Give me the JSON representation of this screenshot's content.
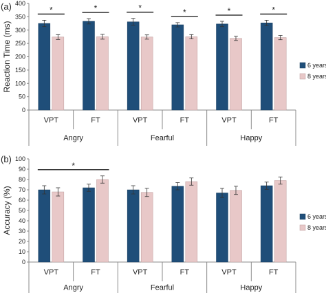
{
  "chart_data": [
    {
      "type": "bar",
      "panel_label": "(a)",
      "ylabel": "Reaction Time (ms)",
      "ylim": [
        0,
        400
      ],
      "yticks": [
        0,
        50,
        100,
        150,
        200,
        250,
        300,
        350,
        400
      ],
      "conditions": [
        "VPT",
        "FT",
        "VPT",
        "FT",
        "VPT",
        "FT"
      ],
      "emotions": [
        "Angry",
        "Fearful",
        "Happy"
      ],
      "series": [
        {
          "name": "6 years",
          "color": "#1f4e79",
          "values": [
            325,
            333,
            331,
            320,
            323,
            327
          ],
          "errors": [
            12,
            10,
            13,
            8,
            10,
            10
          ]
        },
        {
          "name": "8 years",
          "color": "#e8c8c8",
          "values": [
            274,
            275,
            274,
            275,
            269,
            272
          ],
          "errors": [
            9,
            9,
            8,
            8,
            8,
            8
          ]
        }
      ],
      "significance": [
        {
          "label": "*",
          "from": 0,
          "to": 0
        },
        {
          "label": "*",
          "from": 1,
          "to": 1
        },
        {
          "label": "*",
          "from": 2,
          "to": 2
        },
        {
          "label": "*",
          "from": 3,
          "to": 3
        },
        {
          "label": "*",
          "from": 4,
          "to": 4
        },
        {
          "label": "*",
          "from": 5,
          "to": 5
        }
      ],
      "legend_position": "right"
    },
    {
      "type": "bar",
      "panel_label": "(b)",
      "ylabel": "Accuracy (%)",
      "ylim": [
        0,
        100
      ],
      "yticks": [
        0,
        10,
        20,
        30,
        40,
        50,
        60,
        70,
        80,
        90,
        100
      ],
      "conditions": [
        "VPT",
        "FT",
        "VPT",
        "FT",
        "VPT",
        "FT"
      ],
      "emotions": [
        "Angry",
        "Fearful",
        "Happy"
      ],
      "series": [
        {
          "name": "6 years",
          "color": "#1f4e79",
          "values": [
            70,
            72,
            70,
            73.5,
            67,
            74
          ],
          "errors": [
            4,
            3.5,
            4,
            3.5,
            4.5,
            3.5
          ]
        },
        {
          "name": "8 years",
          "color": "#e8c8c8",
          "values": [
            68,
            80,
            67.5,
            78,
            69.5,
            79
          ],
          "errors": [
            4,
            3.5,
            4,
            3.5,
            4,
            3.5
          ]
        }
      ],
      "significance": [
        {
          "label": "*",
          "from": 0,
          "to": 1
        }
      ],
      "legend_position": "right"
    }
  ]
}
